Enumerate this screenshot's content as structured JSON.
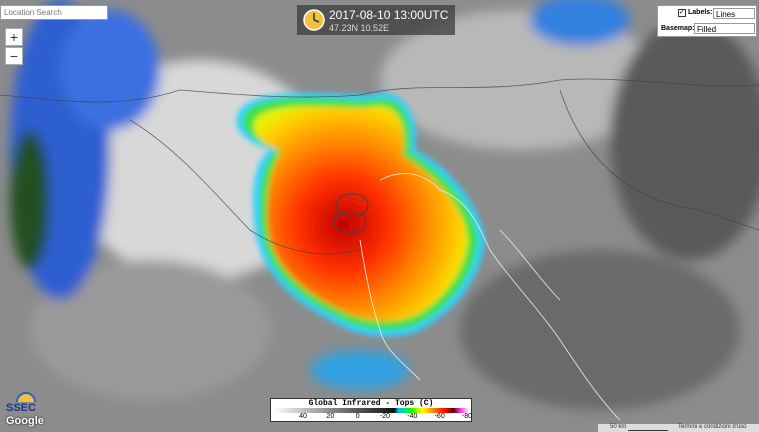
{
  "search": {
    "placeholder": "Location Search"
  },
  "zoom": {
    "in": "+",
    "out": "−"
  },
  "time": {
    "datetime": "2017-08-10 13:00UTC",
    "coords": "47.23N 10.52E"
  },
  "controls": {
    "labels_label": "Labels:",
    "labels_value": "Lines",
    "basemap_label": "Basemap:",
    "basemap_value": "Filled"
  },
  "colorbar": {
    "title": "Global Infrared - Tops (C)",
    "ticks": [
      40,
      20,
      0,
      -20,
      -40,
      -60,
      -80
    ]
  },
  "logo": {
    "org": "SSEC",
    "provider": "Google"
  },
  "footer": {
    "scale": "50 km",
    "terms": "Termini e condizioni d'uso"
  }
}
